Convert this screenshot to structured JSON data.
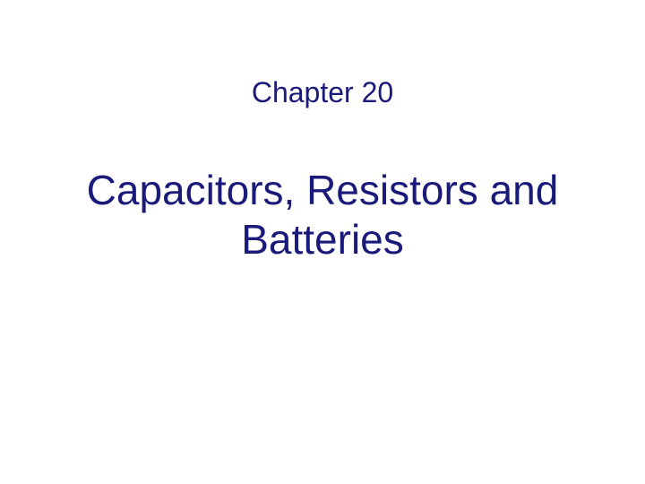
{
  "slide": {
    "chapter_label": "Chapter 20",
    "title_line1": "Capacitors, Resistors and",
    "title_line2": "Batteries"
  },
  "styling": {
    "background_color": "#ffffff",
    "text_color": "#1a1a7a",
    "chapter_fontsize": 32,
    "title_fontsize": 46,
    "font_family": "Arial"
  }
}
